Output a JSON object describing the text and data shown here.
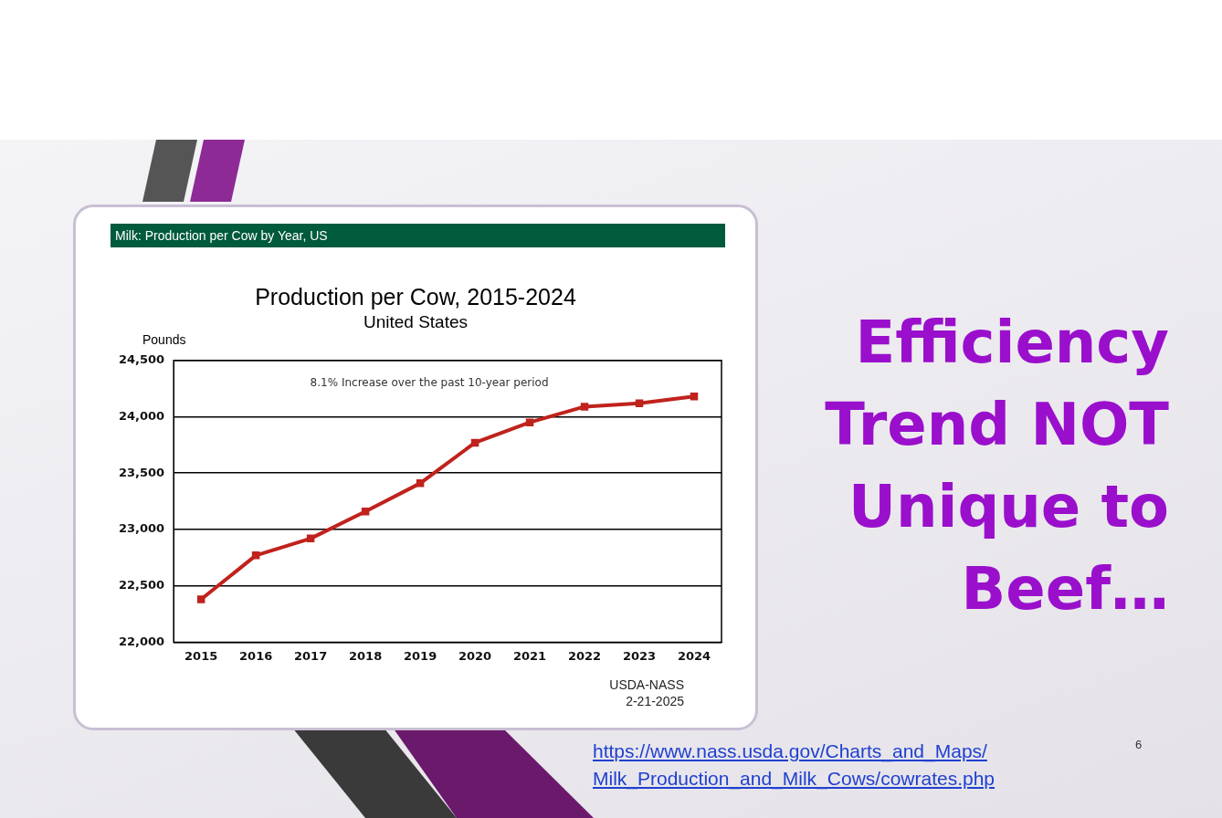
{
  "chart_data": {
    "type": "line",
    "title": "Production per Cow, 2015-2024",
    "subtitle": "United States",
    "ylabel": "Pounds",
    "categories": [
      "2015",
      "2016",
      "2017",
      "2018",
      "2019",
      "2020",
      "2021",
      "2022",
      "2023",
      "2024"
    ],
    "series": [
      {
        "color": "#c0221c",
        "values": [
          22380,
          22770,
          22920,
          23160,
          23410,
          23770,
          23950,
          24090,
          24120,
          24180
        ]
      }
    ],
    "ylim": [
      22000,
      24500
    ],
    "yticks": [
      {
        "value": 22000,
        "label": "22,000"
      },
      {
        "value": 22500,
        "label": "22,500"
      },
      {
        "value": 23000,
        "label": "23,000"
      },
      {
        "value": 23500,
        "label": "23,500"
      },
      {
        "value": 24000,
        "label": "24,000"
      },
      {
        "value": 24500,
        "label": "24,500"
      }
    ],
    "grid": "y",
    "legend": false,
    "marker": "square",
    "line_style": "solid",
    "annotations": [
      "Milk: Production per Cow by Year, US",
      "8.1% Increase over the past 10-year period",
      "USDA-NASS",
      "2-21-2025",
      "Efficiency Trend NOT Unique to Beef…",
      "https://www.nass.usda.gov/Charts_and_Maps/ Milk_Production_and_Milk_Cows/cowrates.php",
      "6"
    ]
  }
}
